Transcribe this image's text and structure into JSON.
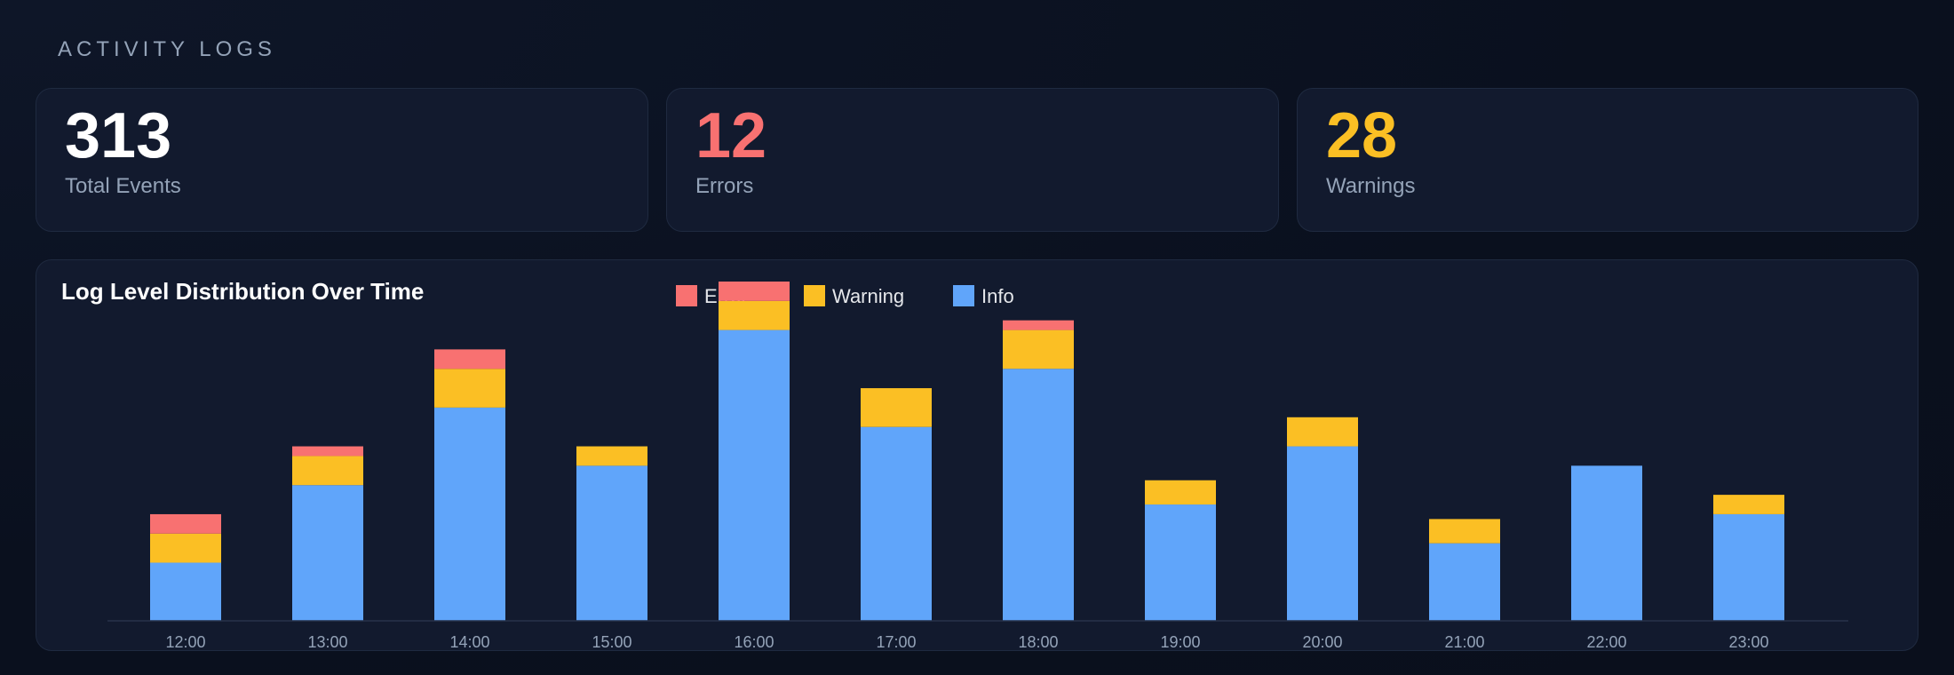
{
  "page": {
    "section_title": "ACTIVITY LOGS"
  },
  "stats": [
    {
      "value": "313",
      "label": "Total Events",
      "color": "#ffffff"
    },
    {
      "value": "12",
      "label": "Errors",
      "color": "#f87171"
    },
    {
      "value": "28",
      "label": "Warnings",
      "color": "#fbbf24"
    }
  ],
  "chart_data": {
    "type": "bar",
    "stacked": true,
    "title": "Log Level Distribution Over Time",
    "categories": [
      "12:00",
      "13:00",
      "14:00",
      "15:00",
      "16:00",
      "17:00",
      "18:00",
      "19:00",
      "20:00",
      "21:00",
      "22:00",
      "23:00"
    ],
    "series": [
      {
        "name": "Info",
        "color": "#60a5fa",
        "values": [
          12,
          28,
          44,
          32,
          60,
          40,
          52,
          24,
          36,
          16,
          32,
          22
        ]
      },
      {
        "name": "Warning",
        "color": "#fbbf24",
        "values": [
          6,
          6,
          8,
          4,
          6,
          8,
          8,
          5,
          6,
          5,
          0,
          4
        ]
      },
      {
        "name": "Error",
        "color": "#f87171",
        "values": [
          4,
          2,
          4,
          0,
          4,
          0,
          2,
          0,
          0,
          0,
          0,
          0
        ]
      }
    ],
    "legend_order": [
      "Error",
      "Warning",
      "Info"
    ],
    "legend_position": "top-center",
    "ylim": [
      0,
      70
    ],
    "y_axis_visible": false,
    "grid": false
  }
}
